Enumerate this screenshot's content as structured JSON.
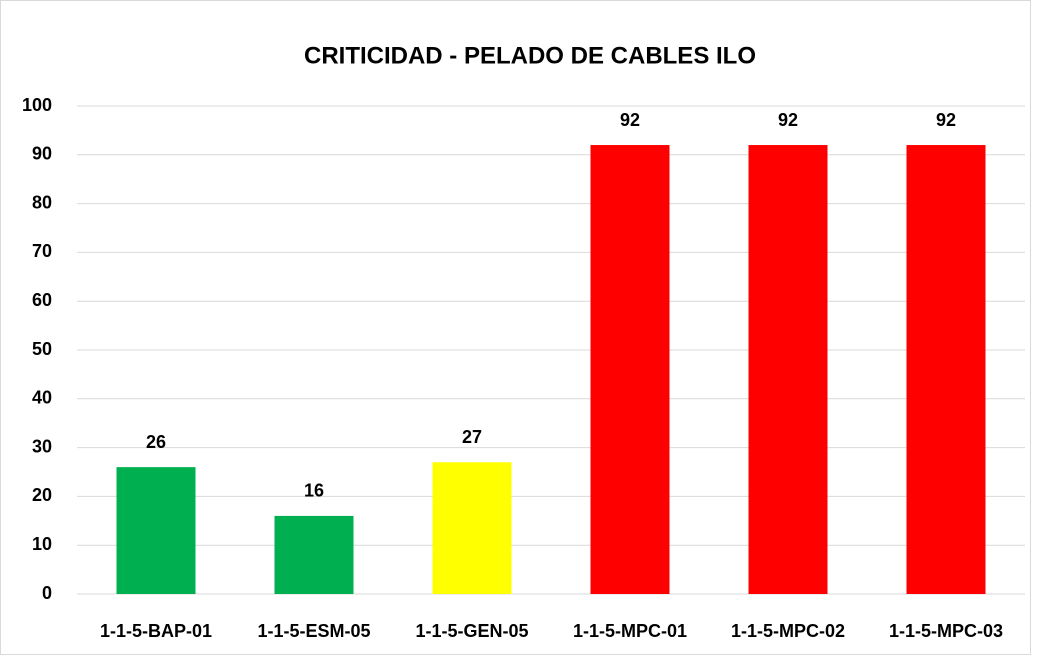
{
  "chart_data": {
    "type": "bar",
    "title": "CRITICIDAD - PELADO DE CABLES ILO",
    "categories": [
      "1-1-5-BAP-01",
      "1-1-5-ESM-05",
      "1-1-5-GEN-05",
      "1-1-5-MPC-01",
      "1-1-5-MPC-02",
      "1-1-5-MPC-03"
    ],
    "values": [
      26,
      16,
      27,
      92,
      92,
      92
    ],
    "colors": [
      "#00b050",
      "#00b050",
      "#ffff00",
      "#ff0000",
      "#ff0000",
      "#ff0000"
    ],
    "ylim": [
      0,
      100
    ],
    "yticks": [
      0,
      10,
      20,
      30,
      40,
      50,
      60,
      70,
      80,
      90,
      100
    ],
    "grid": true
  }
}
